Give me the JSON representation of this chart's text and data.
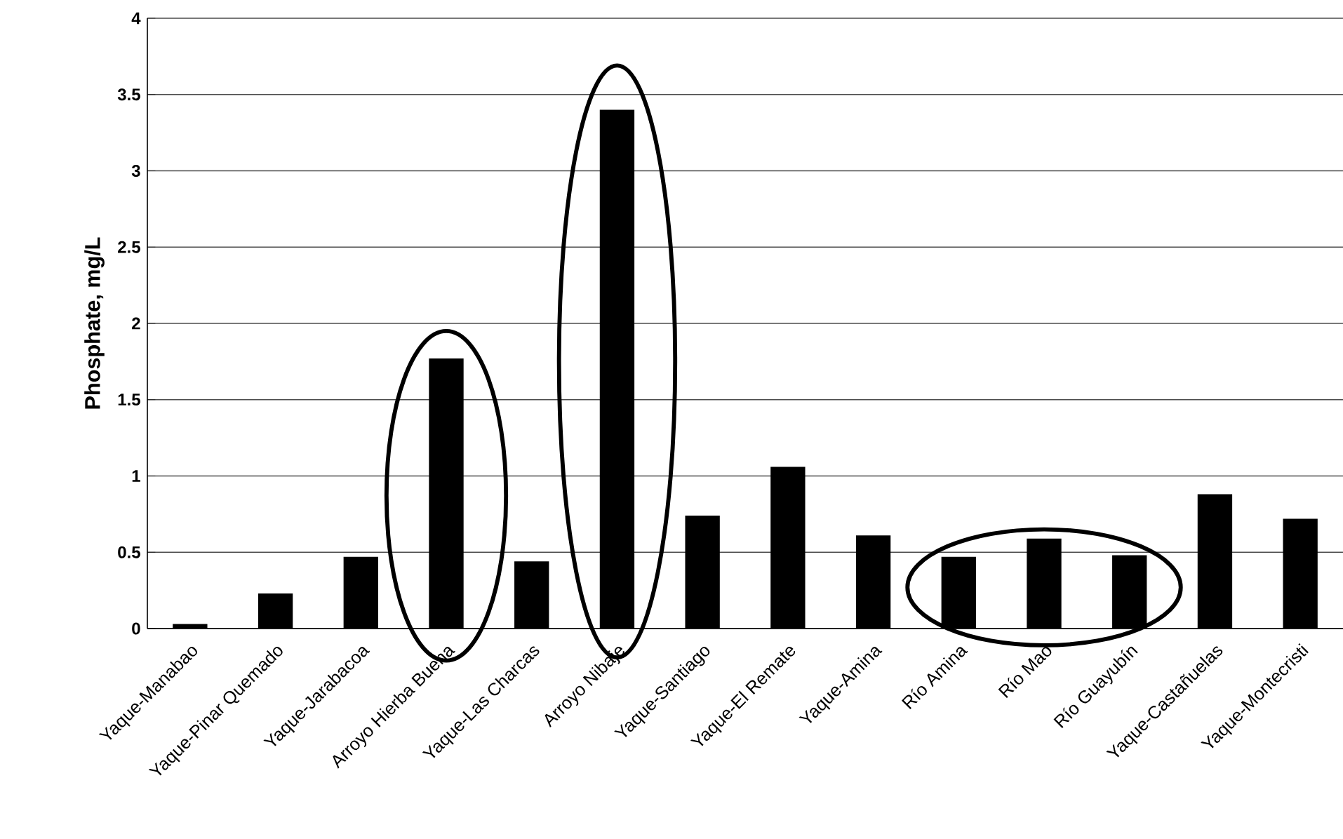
{
  "chart_data": {
    "type": "bar",
    "ylabel": "Phosphate, mg/L",
    "categories": [
      "Yaque-Manabao",
      "Yaque-Pinar Quemado",
      "Yaque-Jarabacoa",
      "Arroyo Hierba Buena",
      "Yaque-Las Charcas",
      "Arroyo Nibaje",
      "Yaque-Santiago",
      "Yaque-El Remate",
      "Yaque-Amina",
      "Río Amina",
      "Río Mao",
      "Río Guayubín",
      "Yaque-Castañuelas",
      "Yaque-Montecristi"
    ],
    "values": [
      0.03,
      0.23,
      0.47,
      1.77,
      0.44,
      3.4,
      0.74,
      1.06,
      0.61,
      0.47,
      0.59,
      0.48,
      0.88,
      0.72
    ],
    "color": "#000000",
    "ylim": [
      0,
      4
    ],
    "yticks": [
      0,
      0.5,
      1,
      1.5,
      2,
      2.5,
      3,
      3.5,
      4
    ],
    "grid": "y"
  }
}
